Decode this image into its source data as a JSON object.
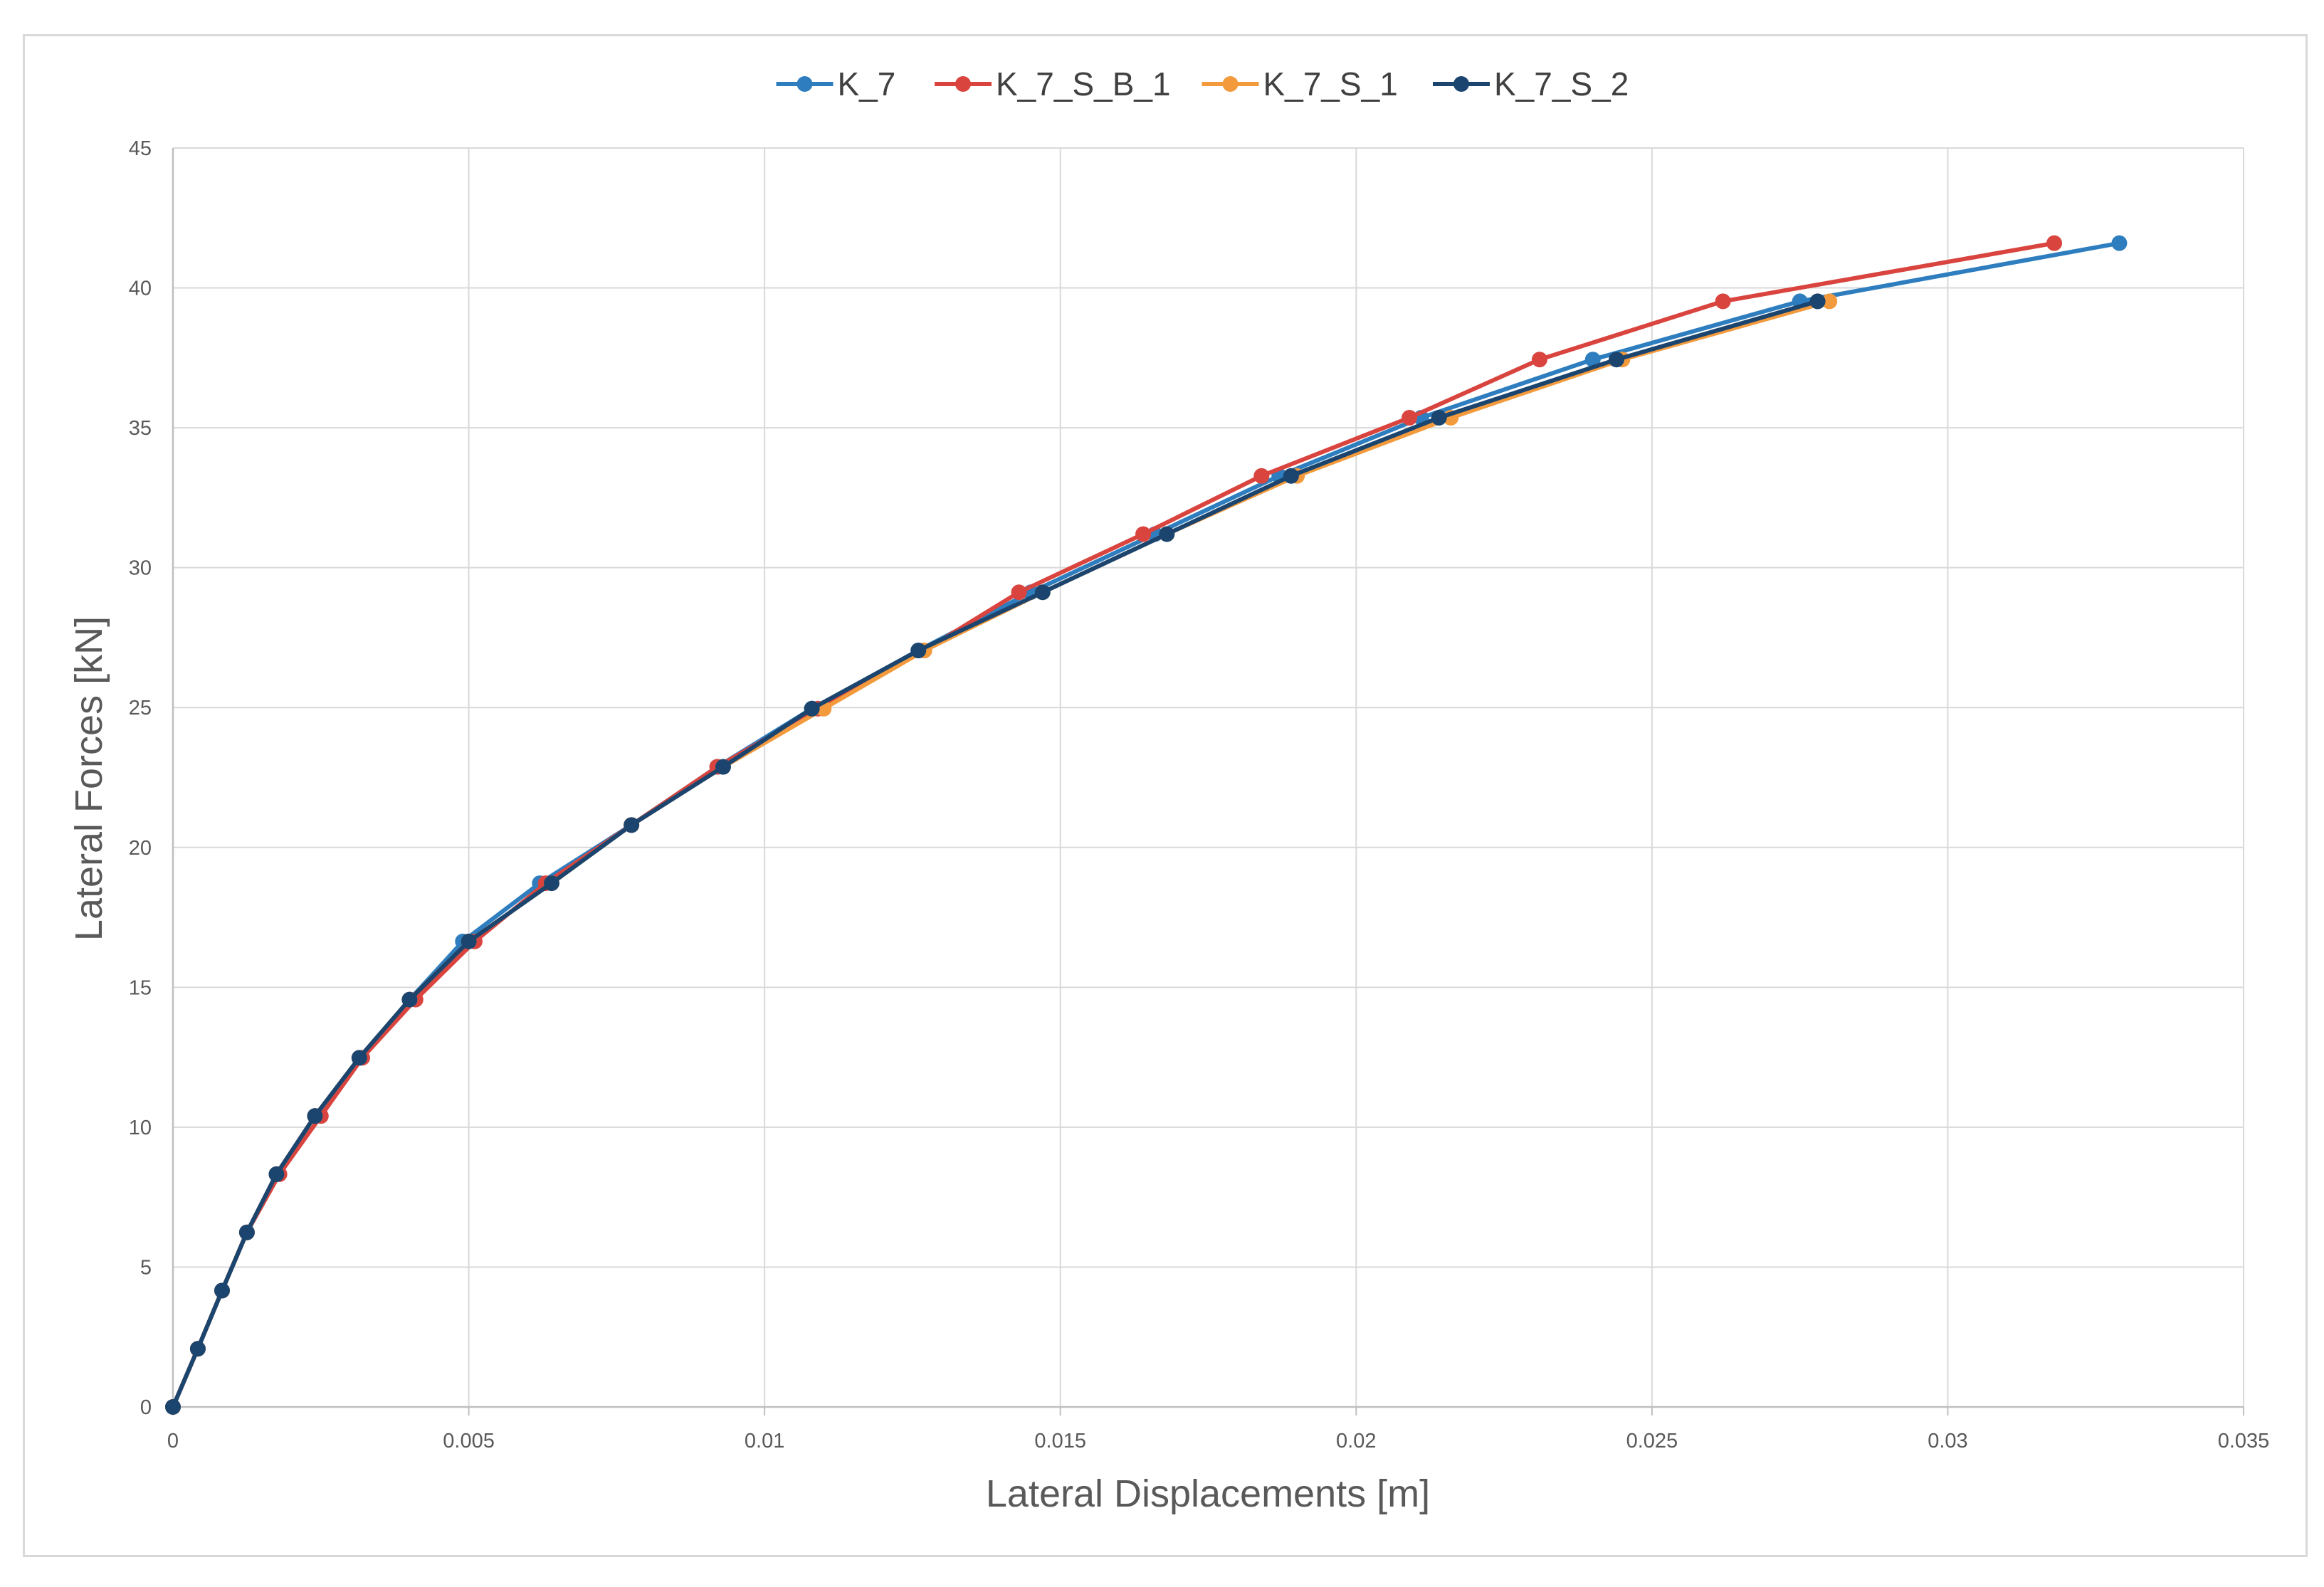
{
  "chart_data": {
    "type": "line",
    "title": "",
    "xlabel": "Lateral Displacements [m]",
    "ylabel": "Lateral Forces [kN]",
    "xlim": [
      0,
      0.035
    ],
    "ylim": [
      0,
      45
    ],
    "x_ticks": [
      0,
      0.005,
      0.01,
      0.015,
      0.02,
      0.025,
      0.03,
      0.035
    ],
    "x_tick_labels": [
      "0",
      "0.005",
      "0.01",
      "0.015",
      "0.02",
      "0.025",
      "0.03",
      "0.035"
    ],
    "y_ticks": [
      0,
      5,
      10,
      15,
      20,
      25,
      30,
      35,
      40,
      45
    ],
    "y_tick_labels": [
      "0",
      "5",
      "10",
      "15",
      "20",
      "25",
      "30",
      "35",
      "40",
      "45"
    ],
    "grid": true,
    "legend_position": "top-center",
    "series": [
      {
        "name": "K_7",
        "color": "#2e7ebf",
        "points": [
          [
            0,
            0
          ],
          [
            0.00042,
            2.08
          ],
          [
            0.00083,
            4.16
          ],
          [
            0.00125,
            6.24
          ],
          [
            0.00175,
            8.32
          ],
          [
            0.0024,
            10.4
          ],
          [
            0.00315,
            12.48
          ],
          [
            0.004,
            14.56
          ],
          [
            0.0049,
            16.64
          ],
          [
            0.0062,
            18.72
          ],
          [
            0.00775,
            20.8
          ],
          [
            0.0092,
            22.88
          ],
          [
            0.0108,
            24.96
          ],
          [
            0.0126,
            27.04
          ],
          [
            0.0145,
            29.12
          ],
          [
            0.0166,
            31.2
          ],
          [
            0.0187,
            33.28
          ],
          [
            0.0211,
            35.36
          ],
          [
            0.024,
            37.44
          ],
          [
            0.0275,
            39.52
          ],
          [
            0.0329,
            41.6
          ]
        ]
      },
      {
        "name": "K_7_S_B_1",
        "color": "#d9443f",
        "points": [
          [
            0,
            0
          ],
          [
            0.00042,
            2.08
          ],
          [
            0.00083,
            4.16
          ],
          [
            0.00125,
            6.24
          ],
          [
            0.0018,
            8.32
          ],
          [
            0.0025,
            10.4
          ],
          [
            0.0032,
            12.48
          ],
          [
            0.0041,
            14.56
          ],
          [
            0.0051,
            16.64
          ],
          [
            0.0063,
            18.72
          ],
          [
            0.00775,
            20.8
          ],
          [
            0.0092,
            22.88
          ],
          [
            0.0109,
            24.96
          ],
          [
            0.0127,
            27.04
          ],
          [
            0.0143,
            29.12
          ],
          [
            0.0164,
            31.2
          ],
          [
            0.0184,
            33.28
          ],
          [
            0.0209,
            35.36
          ],
          [
            0.0231,
            37.44
          ],
          [
            0.0262,
            39.52
          ],
          [
            0.0318,
            41.6
          ]
        ]
      },
      {
        "name": "K_7_S_1",
        "color": "#f39a3c",
        "points": [
          [
            0,
            0
          ],
          [
            0.00042,
            2.08
          ],
          [
            0.00083,
            4.16
          ],
          [
            0.00125,
            6.24
          ],
          [
            0.00175,
            8.32
          ],
          [
            0.0024,
            10.4
          ],
          [
            0.00315,
            12.48
          ],
          [
            0.004,
            14.56
          ],
          [
            0.005,
            16.64
          ],
          [
            0.0064,
            18.72
          ],
          [
            0.00775,
            20.8
          ],
          [
            0.0093,
            22.88
          ],
          [
            0.011,
            24.96
          ],
          [
            0.0127,
            27.04
          ],
          [
            0.0147,
            29.12
          ],
          [
            0.0168,
            31.2
          ],
          [
            0.019,
            33.28
          ],
          [
            0.0216,
            35.36
          ],
          [
            0.0245,
            37.44
          ],
          [
            0.028,
            39.52
          ]
        ]
      },
      {
        "name": "K_7_S_2",
        "color": "#1b456e",
        "points": [
          [
            0,
            0
          ],
          [
            0.00042,
            2.08
          ],
          [
            0.00083,
            4.16
          ],
          [
            0.00125,
            6.24
          ],
          [
            0.00175,
            8.32
          ],
          [
            0.0024,
            10.4
          ],
          [
            0.00315,
            12.48
          ],
          [
            0.004,
            14.56
          ],
          [
            0.005,
            16.64
          ],
          [
            0.0064,
            18.72
          ],
          [
            0.00775,
            20.8
          ],
          [
            0.0093,
            22.88
          ],
          [
            0.0108,
            24.96
          ],
          [
            0.0126,
            27.04
          ],
          [
            0.0147,
            29.12
          ],
          [
            0.0168,
            31.2
          ],
          [
            0.0189,
            33.28
          ],
          [
            0.0214,
            35.36
          ],
          [
            0.0244,
            37.44
          ],
          [
            0.0278,
            39.52
          ]
        ]
      }
    ]
  }
}
